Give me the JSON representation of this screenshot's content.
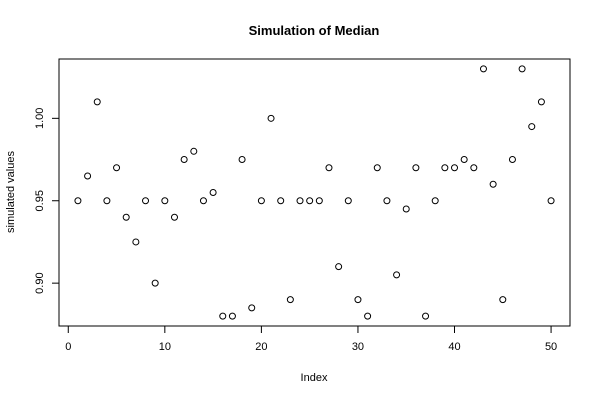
{
  "chart_data": {
    "type": "scatter",
    "title": "Simulation of Median",
    "xlabel": "Index",
    "ylabel": "simulated values",
    "xlim": [
      -0.96,
      51.96
    ],
    "ylim": [
      0.874,
      1.036
    ],
    "xticks": [
      0,
      10,
      20,
      30,
      40,
      50
    ],
    "yticks": [
      0.9,
      0.95,
      1.0
    ],
    "ytick_labels": [
      "0.90",
      "0.95",
      "1.00"
    ],
    "grid": false,
    "x": [
      1,
      2,
      3,
      4,
      5,
      6,
      7,
      8,
      9,
      10,
      11,
      12,
      13,
      14,
      15,
      16,
      17,
      18,
      19,
      20,
      21,
      22,
      23,
      24,
      25,
      26,
      27,
      28,
      29,
      30,
      31,
      32,
      33,
      34,
      35,
      36,
      37,
      38,
      39,
      40,
      41,
      42,
      43,
      44,
      45,
      46,
      47,
      48,
      49,
      50
    ],
    "y": [
      0.95,
      0.965,
      1.01,
      0.95,
      0.97,
      0.94,
      0.925,
      0.95,
      0.9,
      0.95,
      0.94,
      0.975,
      0.98,
      0.95,
      0.955,
      0.88,
      0.88,
      0.975,
      0.885,
      0.95,
      1.0,
      0.95,
      0.89,
      0.95,
      0.95,
      0.95,
      0.97,
      0.91,
      0.95,
      0.89,
      0.88,
      0.97,
      0.95,
      0.905,
      0.945,
      0.97,
      0.88,
      0.95,
      0.97,
      0.97,
      0.975,
      0.97,
      1.03,
      0.96,
      0.89,
      0.975,
      1.03,
      0.995,
      1.01,
      0.95
    ]
  }
}
